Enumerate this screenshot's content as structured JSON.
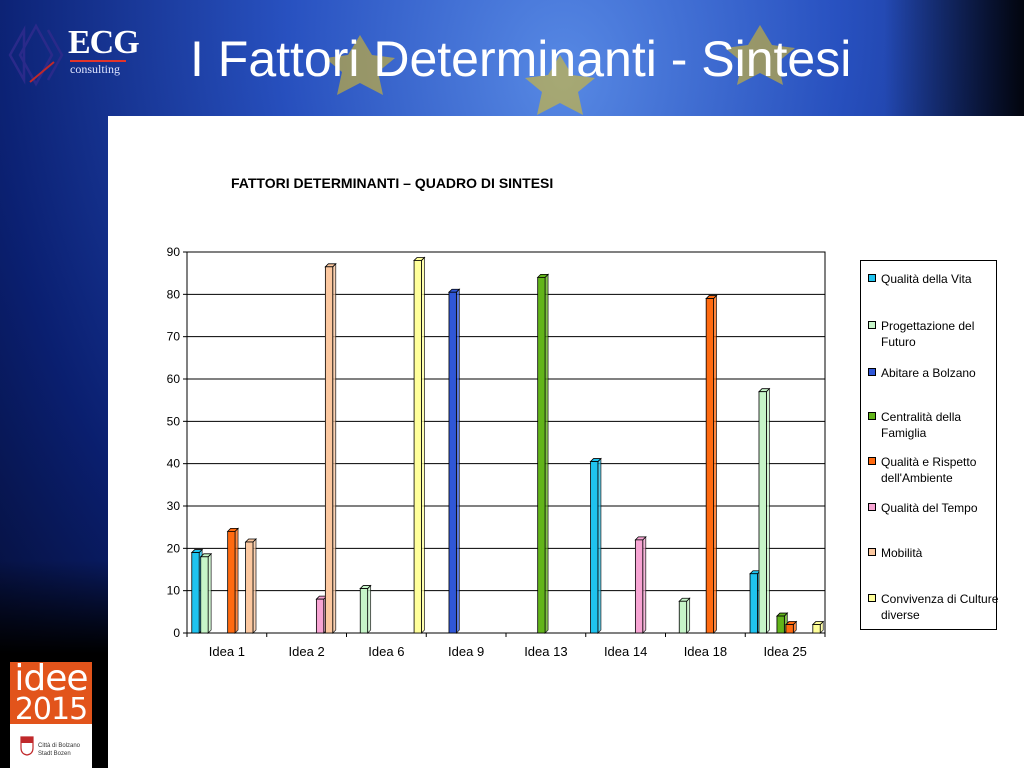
{
  "header": {
    "title": "I Fattori Determinanti - Sintesi",
    "logo_text": "ECG",
    "logo_subtext": "consulting"
  },
  "footer_logo": {
    "word": "idee",
    "year": "2015",
    "city_line1": "Città di Bolzano",
    "city_line2": "Stadt Bozen"
  },
  "colors": {
    "panel_background": "#ffffff",
    "Qualità della Vita": "#1fc3ef",
    "Progettazione del Futuro": "#c6f5c8",
    "Abitare a Bolzano": "#3057d8",
    "Centralità della Famiglia": "#62b41a",
    "Qualità e Rispetto dell'Ambiente": "#ff6a10",
    "Qualità del Tempo": "#f7a4d3",
    "Mobilità": "#fcc8a0",
    "Convivenza di Culture diverse": "#ffff9a"
  },
  "chart_data": {
    "type": "bar",
    "title": "FATTORI DETERMINANTI – QUADRO DI SINTESI",
    "xlabel": "",
    "ylabel": "",
    "ylim": [
      0,
      90
    ],
    "yticks": [
      0,
      10,
      20,
      30,
      40,
      50,
      60,
      70,
      80,
      90
    ],
    "grid": true,
    "legend_position": "right",
    "categories": [
      "Idea 1",
      "Idea 2",
      "Idea 6",
      "Idea 9",
      "Idea 13",
      "Idea 14",
      "Idea 18",
      "Idea 25"
    ],
    "series": [
      {
        "name": "Qualità della Vita",
        "values": [
          19,
          0,
          0,
          0,
          0,
          40.5,
          0,
          14
        ]
      },
      {
        "name": "Progettazione del Futuro",
        "values": [
          18,
          0,
          10.5,
          0,
          0,
          0,
          7.5,
          57
        ]
      },
      {
        "name": "Abitare a Bolzano",
        "values": [
          0,
          0,
          0,
          80.5,
          0,
          0,
          0,
          0
        ]
      },
      {
        "name": "Centralità della Famiglia",
        "values": [
          0,
          0,
          0,
          0,
          84,
          0,
          0,
          4
        ]
      },
      {
        "name": "Qualità e Rispetto dell'Ambiente",
        "values": [
          24,
          0,
          0,
          0,
          0,
          0,
          79,
          2
        ]
      },
      {
        "name": "Qualità del Tempo",
        "values": [
          0,
          8,
          0,
          0,
          0,
          22,
          0,
          0
        ]
      },
      {
        "name": "Mobilità",
        "values": [
          21.5,
          86.5,
          0,
          0,
          0,
          0,
          0,
          0
        ]
      },
      {
        "name": "Convivenza di Culture diverse",
        "values": [
          0,
          0,
          88,
          0,
          0,
          0,
          0,
          2
        ]
      }
    ]
  }
}
